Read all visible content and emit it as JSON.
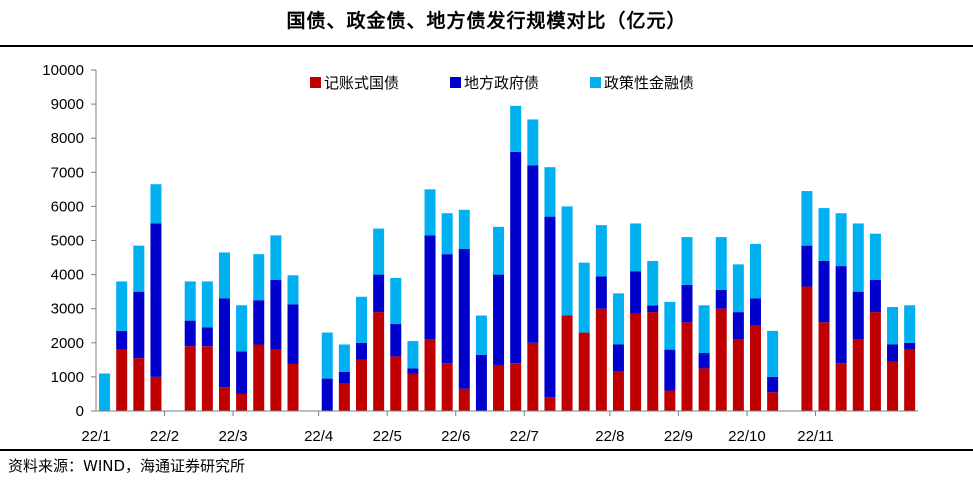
{
  "title": "国债、政金债、地方债发行规模对比（亿元）",
  "source": "资料来源：WIND，海通证券研究所",
  "colors": {
    "treasury": "#C00000",
    "local": "#0000CC",
    "policy": "#00B0F0"
  },
  "chart_data": {
    "type": "bar",
    "stacked": true,
    "ylim": [
      0,
      10000
    ],
    "yticks": [
      0,
      1000,
      2000,
      3000,
      4000,
      5000,
      6000,
      7000,
      8000,
      9000,
      10000
    ],
    "xtick_labels": [
      {
        "label": "22/1",
        "index": 0
      },
      {
        "label": "22/2",
        "index": 4
      },
      {
        "label": "22/3",
        "index": 8
      },
      {
        "label": "22/4",
        "index": 13
      },
      {
        "label": "22/5",
        "index": 17
      },
      {
        "label": "22/6",
        "index": 21
      },
      {
        "label": "22/7",
        "index": 25
      },
      {
        "label": "22/8",
        "index": 30
      },
      {
        "label": "22/9",
        "index": 34
      },
      {
        "label": "22/10",
        "index": 38
      },
      {
        "label": "22/11",
        "index": 42
      }
    ],
    "legend": [
      "记账式国债",
      "地方政府债",
      "政策性金融债"
    ],
    "series": [
      {
        "name": "记账式国债",
        "color": "#C00000",
        "values": [
          0,
          1800,
          1550,
          1000,
          null,
          1900,
          1900,
          700,
          500,
          1950,
          1800,
          1380,
          null,
          0,
          800,
          1500,
          2900,
          1600,
          1100,
          2100,
          1400,
          650,
          0,
          1350,
          1400,
          2000,
          400,
          2800,
          2300,
          3000,
          1150,
          2850,
          2900,
          600,
          2600,
          1250,
          3000,
          2100,
          2500,
          550,
          null,
          3650,
          2600,
          1400,
          2100,
          2900,
          1450,
          1800
        ]
      },
      {
        "name": "地方政府债",
        "color": "#0000CC",
        "values": [
          0,
          550,
          1950,
          4500,
          null,
          750,
          550,
          2600,
          1250,
          1300,
          2050,
          1750,
          null,
          950,
          350,
          500,
          1100,
          950,
          150,
          3050,
          3200,
          4100,
          1650,
          2650,
          6200,
          5200,
          5300,
          0,
          0,
          950,
          800,
          1250,
          200,
          1200,
          1100,
          450,
          550,
          800,
          800,
          450,
          null,
          1200,
          1800,
          2850,
          1400,
          950,
          500,
          200
        ]
      },
      {
        "name": "政策性金融债",
        "color": "#00B0F0",
        "values": [
          1100,
          1450,
          1350,
          1150,
          null,
          1150,
          1350,
          1350,
          1350,
          1350,
          1300,
          850,
          null,
          1350,
          800,
          1350,
          1350,
          1350,
          800,
          1350,
          1200,
          1150,
          1150,
          1400,
          1350,
          1350,
          1450,
          3200,
          2050,
          1500,
          1500,
          1400,
          1300,
          1400,
          1400,
          1400,
          1550,
          1400,
          1600,
          1350,
          null,
          1600,
          1550,
          1550,
          2000,
          1350,
          1100,
          1100
        ]
      }
    ]
  }
}
